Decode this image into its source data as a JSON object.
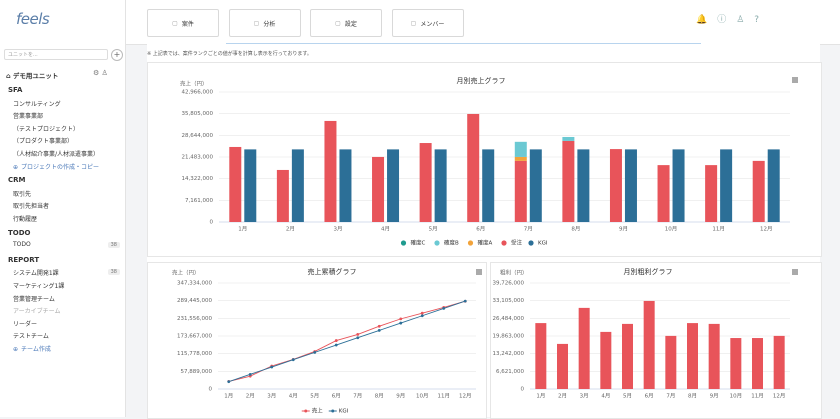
{
  "logo": "feels",
  "tabs": [
    "案件",
    "分析",
    "設定",
    "メンバー"
  ],
  "sidebar": {
    "search_placeholder": "ユニットを...",
    "unit": "デモ用ユニット",
    "sections": [
      {
        "title": "SFA",
        "items": [
          {
            "label": "コンサルティング"
          },
          {
            "label": "営業事業部"
          },
          {
            "label": "（テストプロジェクト）"
          },
          {
            "label": "（プロダクト事業部）"
          },
          {
            "label": "（人材紹介事業/人材派遣事業）"
          },
          {
            "label": "プロジェクトの作成・コピー",
            "action": true
          }
        ]
      },
      {
        "title": "CRM",
        "items": [
          {
            "label": "取引先"
          },
          {
            "label": "取引先担当者"
          },
          {
            "label": "行動履歴"
          }
        ]
      },
      {
        "title": "TODO",
        "items": [
          {
            "label": "TODO",
            "badge": "38"
          }
        ]
      },
      {
        "title": "REPORT",
        "items": [
          {
            "label": "システム開発1課",
            "badge": "38"
          },
          {
            "label": "マーケティング1課"
          },
          {
            "label": "営業管理チーム"
          },
          {
            "label": "アーカイブチーム",
            "archived": true
          },
          {
            "label": "リーダー"
          },
          {
            "label": "テストチーム"
          },
          {
            "label": "チーム作成",
            "action": true
          }
        ]
      }
    ]
  },
  "note": "※ 上記表では、案件ランクごとの値が事を計算し表示を行っております。",
  "chart_data": [
    {
      "type": "bar",
      "title": "月別売上グラフ",
      "y_label": "売上（円）",
      "categories": [
        "1月",
        "2月",
        "3月",
        "4月",
        "5月",
        "6月",
        "7月",
        "8月",
        "9月",
        "10月",
        "11月",
        "12月"
      ],
      "series": [
        {
          "name": "確度C",
          "color": "#1f9b8f",
          "stacked": true,
          "values": [
            0,
            0,
            0,
            0,
            0,
            0,
            0,
            0,
            0,
            0,
            0,
            0
          ]
        },
        {
          "name": "確度B",
          "color": "#6bc9d3",
          "stacked": true,
          "values": [
            0,
            0,
            0,
            0,
            0,
            0,
            5000000,
            1300000,
            0,
            0,
            0,
            0
          ]
        },
        {
          "name": "確度A",
          "color": "#f2a33a",
          "stacked": true,
          "values": [
            0,
            0,
            0,
            0,
            0,
            0,
            1300000,
            0,
            0,
            0,
            0,
            0
          ]
        },
        {
          "name": "受注",
          "color": "#e8545a",
          "stacked": true,
          "values": [
            24800000,
            17200000,
            33400000,
            21500000,
            26100000,
            35700000,
            20200000,
            26800000,
            24100000,
            18800000,
            18800000,
            20200000
          ]
        },
        {
          "name": "KGI",
          "color": "#2c6f97",
          "stacked": false,
          "values": [
            24000000,
            24000000,
            24000000,
            24000000,
            24000000,
            24000000,
            24000000,
            24000000,
            24000000,
            24000000,
            24000000,
            24000000
          ]
        }
      ],
      "ylim": [
        0,
        42966000
      ],
      "yticks": [
        0,
        {
          "value": 7161000,
          "label": "7,161,000"
        },
        {
          "value": 14322000,
          "label": "14,322,000"
        },
        {
          "value": 21483000,
          "label": "21,483,000"
        },
        {
          "value": 28644000,
          "label": "28,644,000"
        },
        {
          "value": 35805000,
          "label": "35,805,000"
        },
        {
          "value": 42966000,
          "label": "42,966,000"
        }
      ],
      "grid": true,
      "legend": "bottom"
    },
    {
      "type": "line",
      "title": "売上累積グラフ",
      "y_label": "売上（円）",
      "categories": [
        "1月",
        "2月",
        "3月",
        "4月",
        "5月",
        "6月",
        "7月",
        "8月",
        "9月",
        "10月",
        "11月",
        "12月"
      ],
      "series": [
        {
          "name": "売上",
          "color": "#e8545a",
          "values": [
            24800000,
            42000000,
            75400000,
            96900000,
            123000000,
            158700000,
            178900000,
            205700000,
            229800000,
            248600000,
            267400000,
            287600000
          ]
        },
        {
          "name": "KGI",
          "color": "#2c6f97",
          "values": [
            24000000,
            48000000,
            72000000,
            96000000,
            120000000,
            144000000,
            168000000,
            192000000,
            216000000,
            240000000,
            264000000,
            288000000
          ]
        }
      ],
      "ylim": [
        0,
        347334000
      ],
      "yticks": [
        0,
        {
          "value": 57889000,
          "label": "57,889,000"
        },
        {
          "value": 115778000,
          "label": "115,778,000"
        },
        {
          "value": 173667000,
          "label": "173,667,000"
        },
        {
          "value": 231556000,
          "label": "231,556,000"
        },
        {
          "value": 289445000,
          "label": "289,445,000"
        },
        {
          "value": 347334000,
          "label": "347,334,000"
        }
      ],
      "grid": true,
      "legend": "bottom"
    },
    {
      "type": "bar",
      "title": "月別粗利グラフ",
      "y_label": "粗利（円）",
      "categories": [
        "1月",
        "2月",
        "3月",
        "4月",
        "5月",
        "6月",
        "7月",
        "8月",
        "9月",
        "10月",
        "11月",
        "12月"
      ],
      "values": [
        24700000,
        16900000,
        30400000,
        21400000,
        24400000,
        33000000,
        19900000,
        24700000,
        24400000,
        19100000,
        19100000,
        19900000
      ],
      "color": "#e8545a",
      "ylim": [
        0,
        39726000
      ],
      "yticks": [
        0,
        {
          "value": 6621000,
          "label": "6,621,000"
        },
        {
          "value": 13242000,
          "label": "13,242,000"
        },
        {
          "value": 19863000,
          "label": "19,863,000"
        },
        {
          "value": 26484000,
          "label": "26,484,000"
        },
        {
          "value": 33105000,
          "label": "33,105,000"
        },
        {
          "value": 39726000,
          "label": "39,726,000"
        }
      ],
      "grid": true
    }
  ]
}
